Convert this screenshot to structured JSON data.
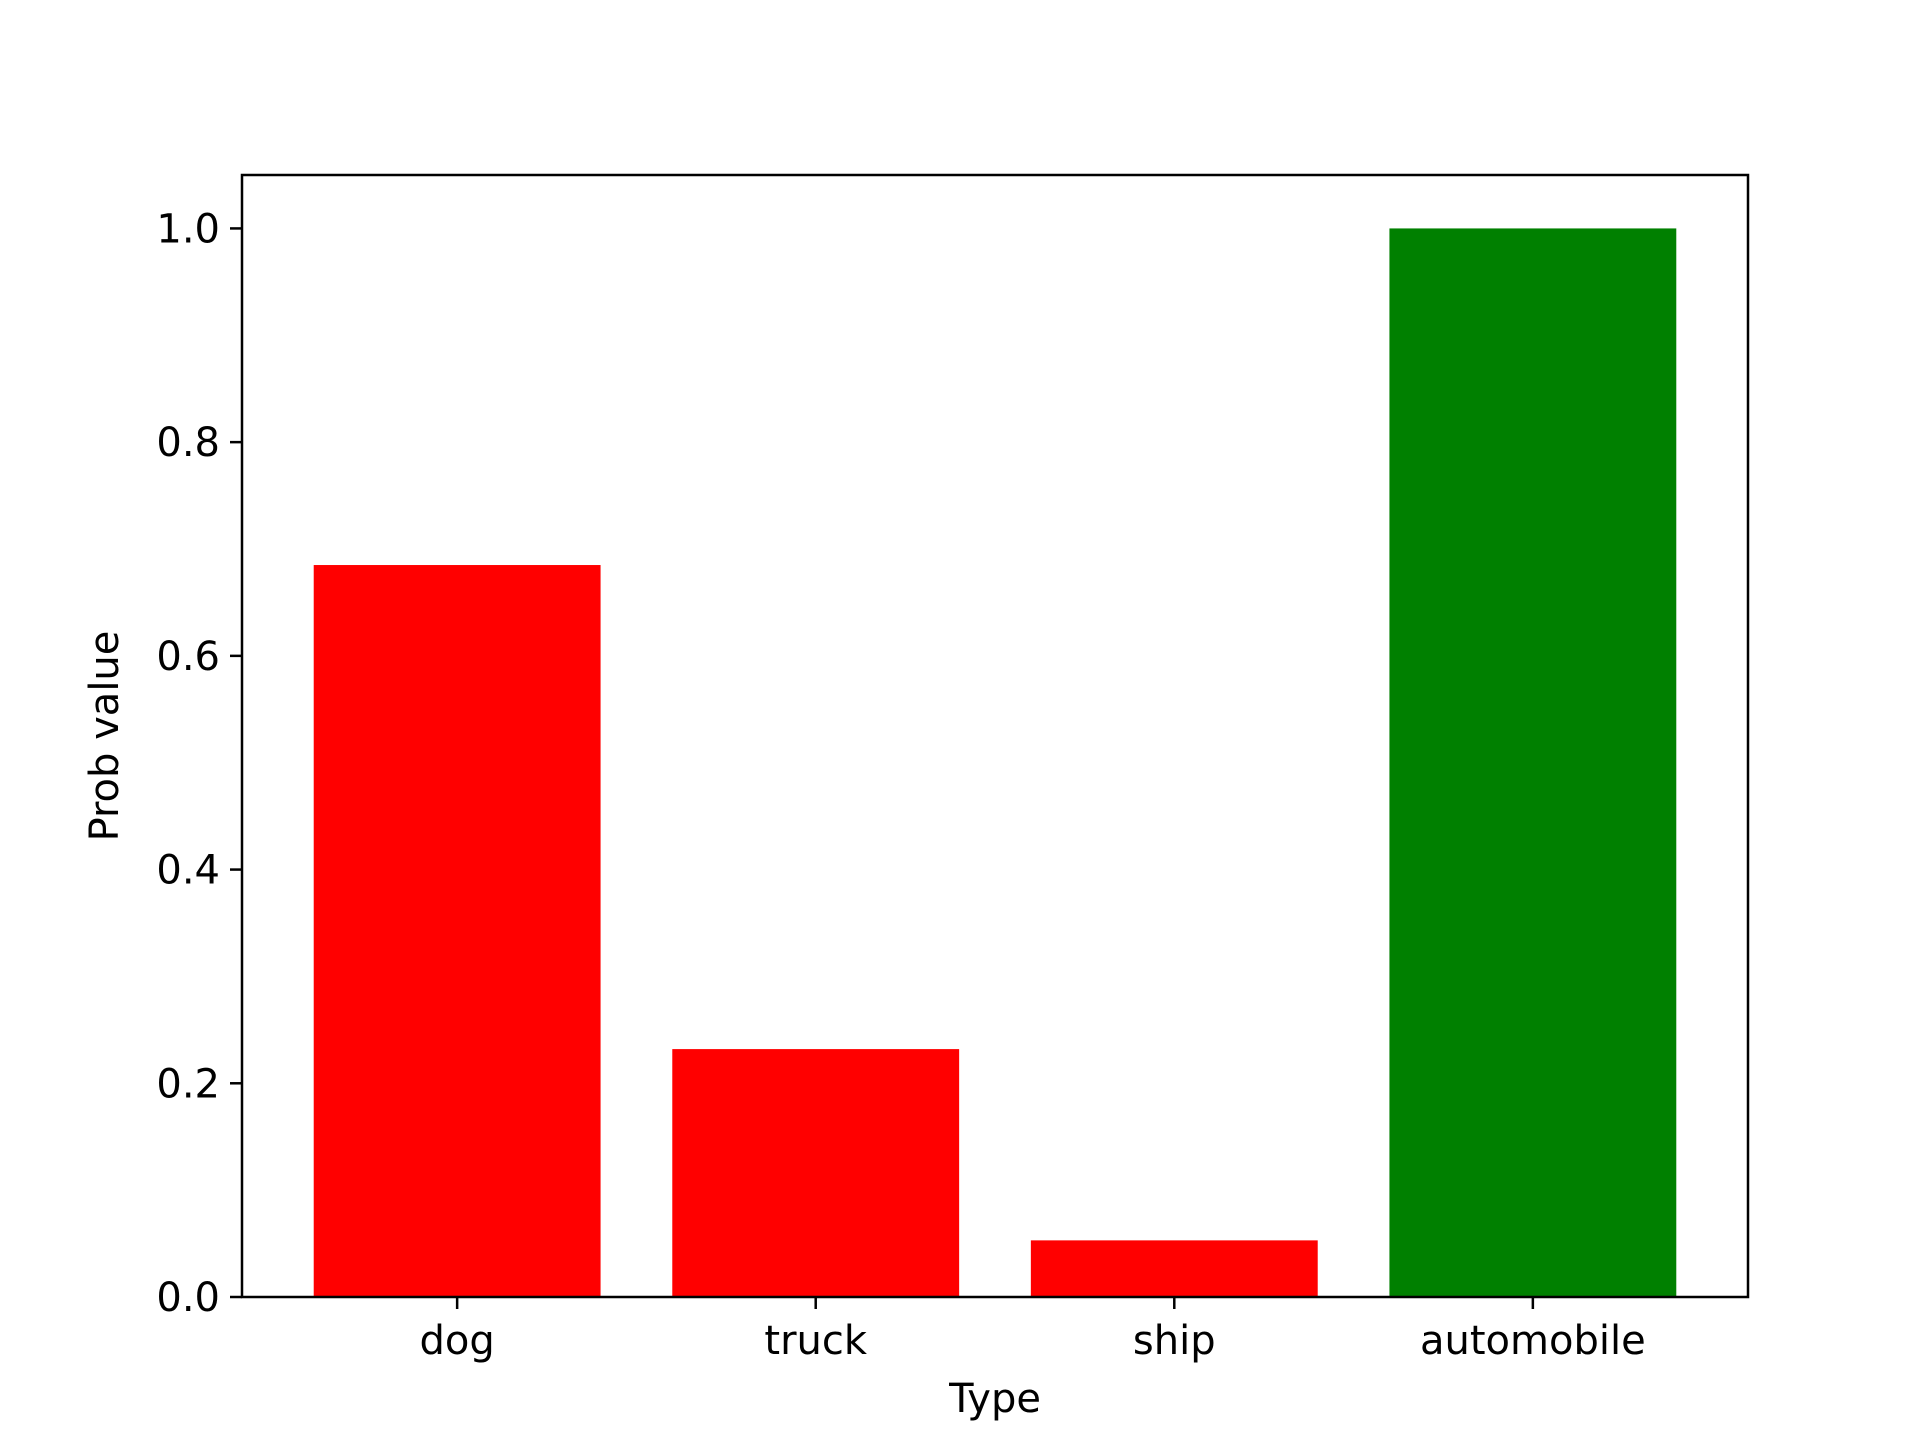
{
  "chart_data": {
    "type": "bar",
    "title": "",
    "xlabel": "Type",
    "ylabel": "Prob value",
    "categories": [
      "dog",
      "truck",
      "ship",
      "automobile"
    ],
    "values": [
      0.685,
      0.232,
      0.053,
      1.0
    ],
    "bar_colors": [
      "#ff0000",
      "#ff0000",
      "#ff0000",
      "#008000"
    ],
    "ylim": [
      0,
      1.05
    ],
    "yticks": [
      0.0,
      0.2,
      0.4,
      0.6,
      0.8,
      1.0
    ],
    "ytick_labels": [
      "0.0",
      "0.2",
      "0.4",
      "0.6",
      "0.8",
      "1.0"
    ],
    "grid": false,
    "legend": "none"
  }
}
